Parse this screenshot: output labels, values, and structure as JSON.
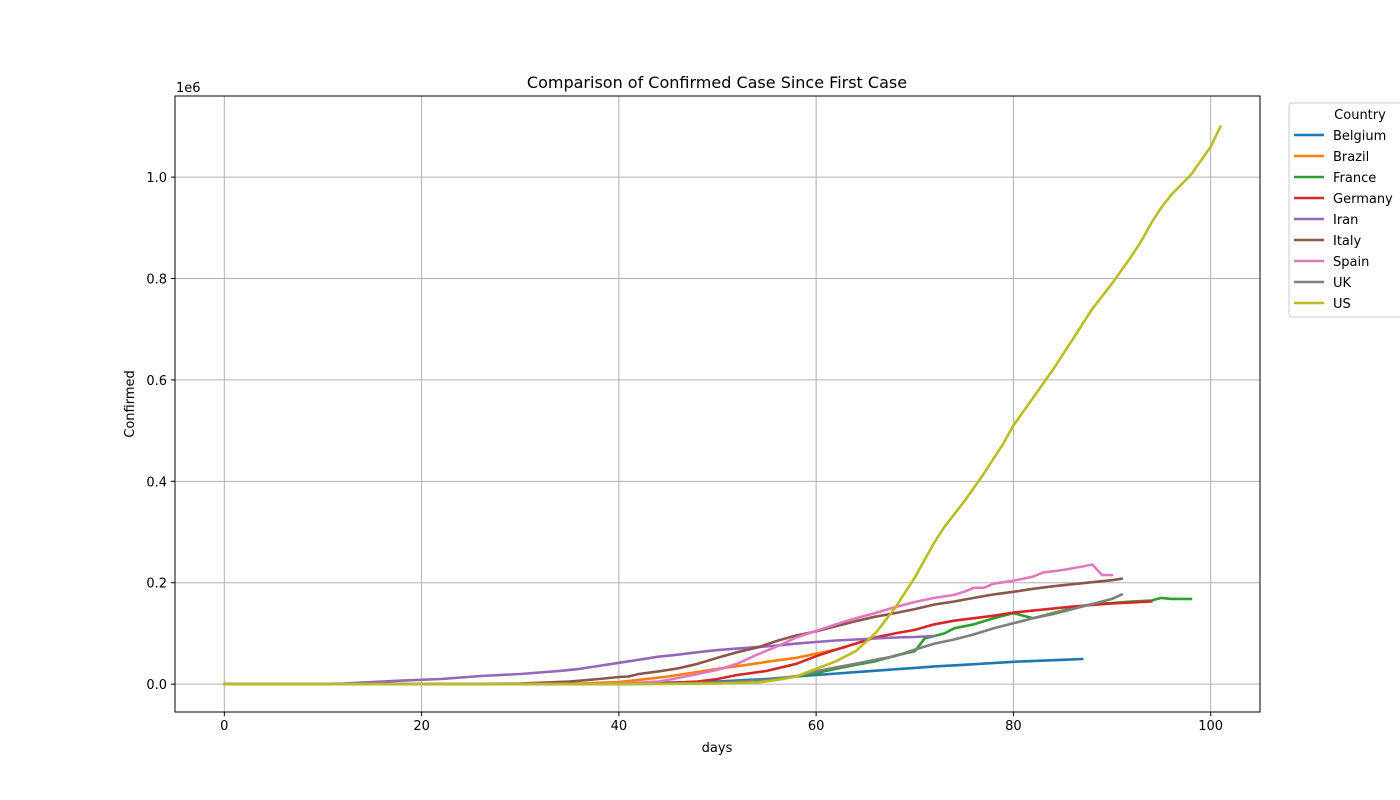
{
  "chart_data": {
    "type": "line",
    "title": "Comparison of Confirmed Case Since First Case",
    "xlabel": "days",
    "ylabel": "Confirmed",
    "y_offset_label": "1e6",
    "xlim": [
      -5,
      105
    ],
    "ylim": [
      -55000,
      1160000
    ],
    "x_ticks": [
      0,
      20,
      40,
      60,
      80,
      100
    ],
    "x_tick_labels": [
      "0",
      "20",
      "40",
      "60",
      "80",
      "100"
    ],
    "y_ticks": [
      0,
      200000,
      400000,
      600000,
      800000,
      1000000
    ],
    "y_tick_labels": [
      "0.0",
      "0.2",
      "0.4",
      "0.6",
      "0.8",
      "1.0"
    ],
    "grid": true,
    "legend": {
      "title": "Country",
      "placement": "outside-top-right"
    },
    "series": [
      {
        "name": "Belgium",
        "color": "#1f77b4",
        "points": [
          [
            0,
            0
          ],
          [
            30,
            0
          ],
          [
            40,
            1000
          ],
          [
            45,
            3000
          ],
          [
            50,
            5000
          ],
          [
            55,
            10000
          ],
          [
            58,
            15000
          ],
          [
            60,
            18000
          ],
          [
            65,
            25000
          ],
          [
            70,
            32000
          ],
          [
            72,
            35000
          ],
          [
            75,
            38000
          ],
          [
            80,
            44000
          ],
          [
            85,
            48000
          ],
          [
            87,
            49500
          ]
        ]
      },
      {
        "name": "Brazil",
        "color": "#ff7f0e",
        "points": [
          [
            0,
            0
          ],
          [
            30,
            0
          ],
          [
            35,
            500
          ],
          [
            40,
            4000
          ],
          [
            45,
            15000
          ],
          [
            50,
            30000
          ],
          [
            53,
            38000
          ],
          [
            55,
            44000
          ],
          [
            58,
            52000
          ],
          [
            60,
            60000
          ],
          [
            62,
            68000
          ],
          [
            63,
            73000
          ]
        ]
      },
      {
        "name": "France",
        "color": "#2ca02c",
        "points": [
          [
            0,
            0
          ],
          [
            30,
            0
          ],
          [
            40,
            0
          ],
          [
            45,
            1000
          ],
          [
            50,
            3000
          ],
          [
            55,
            8000
          ],
          [
            58,
            15000
          ],
          [
            60,
            22000
          ],
          [
            62,
            30000
          ],
          [
            64,
            38000
          ],
          [
            66,
            45000
          ],
          [
            68,
            56000
          ],
          [
            70,
            65000
          ],
          [
            71,
            90000
          ],
          [
            72,
            95000
          ],
          [
            73,
            100000
          ],
          [
            74,
            110000
          ],
          [
            76,
            118000
          ],
          [
            78,
            130000
          ],
          [
            80,
            140000
          ],
          [
            81,
            135000
          ],
          [
            82,
            130000
          ],
          [
            84,
            140000
          ],
          [
            86,
            150000
          ],
          [
            88,
            158000
          ],
          [
            90,
            160000
          ],
          [
            92,
            163000
          ],
          [
            94,
            165000
          ],
          [
            95,
            170000
          ],
          [
            96,
            168000
          ],
          [
            97,
            168000
          ],
          [
            98,
            168000
          ]
        ]
      },
      {
        "name": "Germany",
        "color": "#d62728",
        "points": [
          [
            0,
            0
          ],
          [
            30,
            0
          ],
          [
            40,
            0
          ],
          [
            45,
            2000
          ],
          [
            48,
            5000
          ],
          [
            50,
            10000
          ],
          [
            52,
            18000
          ],
          [
            55,
            26000
          ],
          [
            58,
            40000
          ],
          [
            60,
            55000
          ],
          [
            62,
            68000
          ],
          [
            64,
            80000
          ],
          [
            66,
            92000
          ],
          [
            68,
            100000
          ],
          [
            70,
            107000
          ],
          [
            72,
            118000
          ],
          [
            74,
            125000
          ],
          [
            76,
            130000
          ],
          [
            78,
            135000
          ],
          [
            80,
            141000
          ],
          [
            82,
            145000
          ],
          [
            84,
            149000
          ],
          [
            86,
            153000
          ],
          [
            88,
            156000
          ],
          [
            90,
            159000
          ],
          [
            92,
            161000
          ],
          [
            94,
            163000
          ]
        ]
      },
      {
        "name": "Iran",
        "color": "#9467bd",
        "points": [
          [
            0,
            0
          ],
          [
            10,
            0
          ],
          [
            12,
            1000
          ],
          [
            15,
            4000
          ],
          [
            18,
            7000
          ],
          [
            22,
            10000
          ],
          [
            26,
            16000
          ],
          [
            30,
            20000
          ],
          [
            34,
            26000
          ],
          [
            36,
            30000
          ],
          [
            38,
            36000
          ],
          [
            40,
            42000
          ],
          [
            42,
            48000
          ],
          [
            44,
            54000
          ],
          [
            46,
            58000
          ],
          [
            48,
            63000
          ],
          [
            50,
            67000
          ],
          [
            52,
            70000
          ],
          [
            54,
            73000
          ],
          [
            56,
            76000
          ],
          [
            58,
            80000
          ],
          [
            60,
            83000
          ],
          [
            62,
            86000
          ],
          [
            64,
            88000
          ],
          [
            66,
            90000
          ],
          [
            68,
            92000
          ],
          [
            70,
            93000
          ],
          [
            72,
            95000
          ]
        ]
      },
      {
        "name": "Italy",
        "color": "#8c564b",
        "points": [
          [
            0,
            0
          ],
          [
            20,
            0
          ],
          [
            30,
            1000
          ],
          [
            35,
            5000
          ],
          [
            38,
            10000
          ],
          [
            40,
            14000
          ],
          [
            41,
            15000
          ],
          [
            42,
            20000
          ],
          [
            44,
            25000
          ],
          [
            46,
            31000
          ],
          [
            48,
            40000
          ],
          [
            50,
            52000
          ],
          [
            52,
            63000
          ],
          [
            54,
            72000
          ],
          [
            56,
            85000
          ],
          [
            58,
            96000
          ],
          [
            60,
            104000
          ],
          [
            62,
            114000
          ],
          [
            64,
            124000
          ],
          [
            66,
            133000
          ],
          [
            68,
            140000
          ],
          [
            70,
            148000
          ],
          [
            72,
            157000
          ],
          [
            74,
            163000
          ],
          [
            76,
            170000
          ],
          [
            78,
            177000
          ],
          [
            80,
            182000
          ],
          [
            82,
            188000
          ],
          [
            84,
            193000
          ],
          [
            86,
            197000
          ],
          [
            88,
            201000
          ],
          [
            90,
            205000
          ],
          [
            91,
            208000
          ]
        ]
      },
      {
        "name": "Spain",
        "color": "#e377c2",
        "points": [
          [
            0,
            0
          ],
          [
            30,
            0
          ],
          [
            40,
            1000
          ],
          [
            44,
            5000
          ],
          [
            46,
            12000
          ],
          [
            48,
            20000
          ],
          [
            50,
            28000
          ],
          [
            52,
            40000
          ],
          [
            54,
            58000
          ],
          [
            56,
            74000
          ],
          [
            58,
            92000
          ],
          [
            60,
            105000
          ],
          [
            62,
            118000
          ],
          [
            64,
            130000
          ],
          [
            66,
            140000
          ],
          [
            68,
            152000
          ],
          [
            70,
            162000
          ],
          [
            72,
            170000
          ],
          [
            74,
            176000
          ],
          [
            75,
            182000
          ],
          [
            76,
            190000
          ],
          [
            77,
            190000
          ],
          [
            78,
            198000
          ],
          [
            80,
            204000
          ],
          [
            82,
            212000
          ],
          [
            83,
            220000
          ],
          [
            85,
            225000
          ],
          [
            87,
            232000
          ],
          [
            88,
            236000
          ],
          [
            89,
            215000
          ],
          [
            90,
            215000
          ]
        ]
      },
      {
        "name": "UK",
        "color": "#7f7f7f",
        "points": [
          [
            0,
            0
          ],
          [
            30,
            0
          ],
          [
            40,
            0
          ],
          [
            45,
            1000
          ],
          [
            50,
            3000
          ],
          [
            55,
            8000
          ],
          [
            58,
            16000
          ],
          [
            60,
            25000
          ],
          [
            62,
            33000
          ],
          [
            64,
            40000
          ],
          [
            66,
            48000
          ],
          [
            68,
            55000
          ],
          [
            70,
            68000
          ],
          [
            72,
            80000
          ],
          [
            74,
            88000
          ],
          [
            76,
            98000
          ],
          [
            78,
            110000
          ],
          [
            80,
            120000
          ],
          [
            82,
            130000
          ],
          [
            84,
            138000
          ],
          [
            86,
            148000
          ],
          [
            88,
            158000
          ],
          [
            90,
            168000
          ],
          [
            91,
            177000
          ]
        ]
      },
      {
        "name": "US",
        "color": "#bcbd22",
        "points": [
          [
            0,
            0
          ],
          [
            40,
            0
          ],
          [
            50,
            1000
          ],
          [
            54,
            3000
          ],
          [
            56,
            8000
          ],
          [
            58,
            15000
          ],
          [
            60,
            30000
          ],
          [
            62,
            45000
          ],
          [
            64,
            65000
          ],
          [
            66,
            100000
          ],
          [
            68,
            150000
          ],
          [
            70,
            210000
          ],
          [
            71,
            245000
          ],
          [
            72,
            280000
          ],
          [
            73,
            310000
          ],
          [
            75,
            360000
          ],
          [
            77,
            415000
          ],
          [
            79,
            475000
          ],
          [
            80,
            510000
          ],
          [
            82,
            565000
          ],
          [
            84,
            620000
          ],
          [
            86,
            680000
          ],
          [
            88,
            740000
          ],
          [
            90,
            790000
          ],
          [
            92,
            845000
          ],
          [
            93,
            875000
          ],
          [
            94,
            910000
          ],
          [
            95,
            940000
          ],
          [
            96,
            965000
          ],
          [
            98,
            1005000
          ],
          [
            100,
            1060000
          ],
          [
            101,
            1100000
          ]
        ]
      }
    ]
  }
}
